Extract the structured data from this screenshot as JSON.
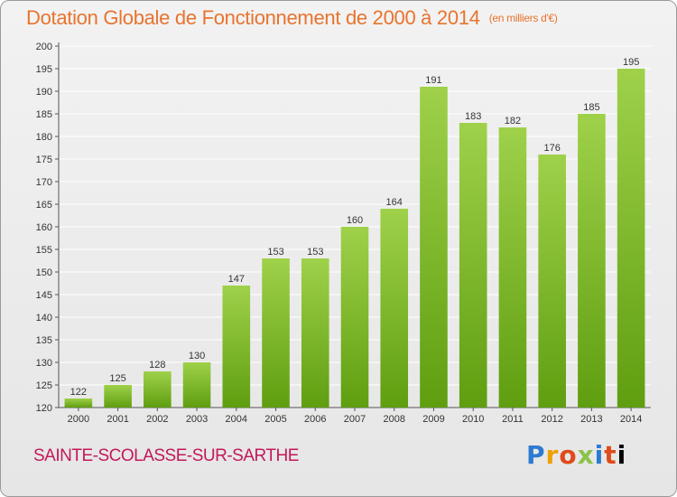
{
  "title": "Dotation Globale de Fonctionnement de 2000 à 2014",
  "unit_note": "(en milliers d'€)",
  "city": "SAINTE-SCOLASSE-SUR-SARTHE",
  "logo": {
    "letters": [
      "P",
      "r",
      "o",
      "x",
      "i",
      "t",
      "i"
    ]
  },
  "colors": {
    "bar_top": "#9fd14a",
    "bar_bottom": "#5f9e10",
    "title": "#e8742e",
    "city": "#c2185b",
    "grid": "#ffffff"
  },
  "chart_data": {
    "type": "bar",
    "title": "Dotation Globale de Fonctionnement de 2000 à 2014",
    "categories": [
      "2000",
      "2001",
      "2002",
      "2003",
      "2004",
      "2005",
      "2006",
      "2007",
      "2008",
      "2009",
      "2010",
      "2011",
      "2012",
      "2013",
      "2014"
    ],
    "values": [
      122,
      125,
      128,
      130,
      147,
      153,
      153,
      160,
      164,
      191,
      183,
      182,
      176,
      185,
      195
    ],
    "ylim": [
      120,
      200
    ],
    "yticks": [
      120,
      125,
      130,
      135,
      140,
      145,
      150,
      155,
      160,
      165,
      170,
      175,
      180,
      185,
      190,
      195,
      200
    ],
    "grid": true
  }
}
